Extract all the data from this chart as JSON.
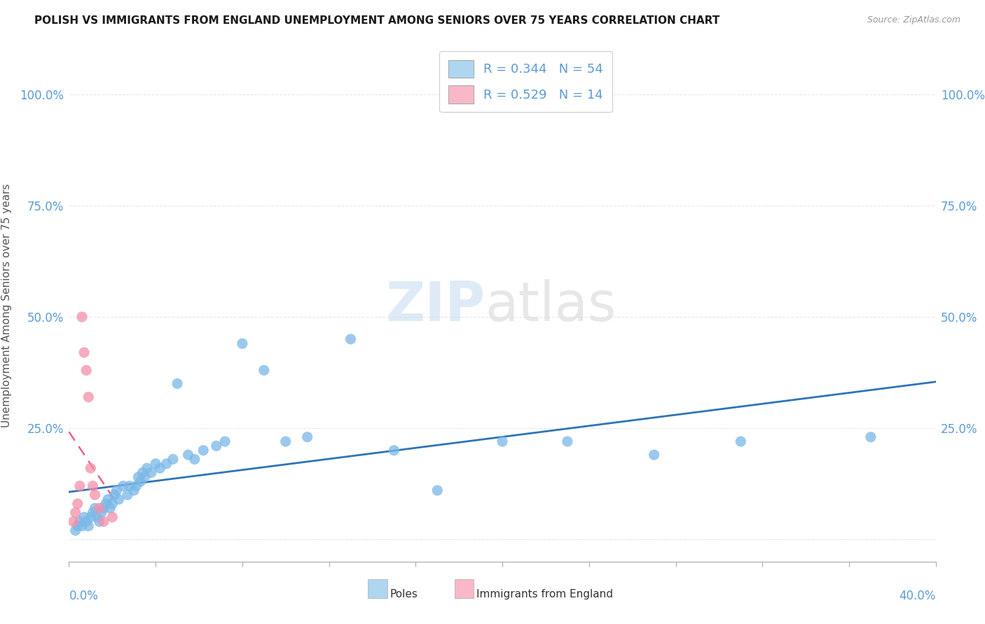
{
  "title": "POLISH VS IMMIGRANTS FROM ENGLAND UNEMPLOYMENT AMONG SENIORS OVER 75 YEARS CORRELATION CHART",
  "source": "Source: ZipAtlas.com",
  "ylabel": "Unemployment Among Seniors over 75 years",
  "ytick_values": [
    0.0,
    0.25,
    0.5,
    0.75,
    1.0
  ],
  "ytick_labels": [
    "",
    "25.0%",
    "50.0%",
    "75.0%",
    "100.0%"
  ],
  "xlim": [
    0.0,
    0.4
  ],
  "ylim": [
    -0.05,
    1.1
  ],
  "legend_label1": "R = 0.344   N = 54",
  "legend_label2": "R = 0.529   N = 14",
  "legend_color1": "#aed6f1",
  "legend_color2": "#f9b8c8",
  "watermark_zip": "ZIP",
  "watermark_atlas": "atlas",
  "blue_scatter_x": [
    0.003,
    0.004,
    0.005,
    0.006,
    0.007,
    0.008,
    0.009,
    0.01,
    0.011,
    0.012,
    0.013,
    0.014,
    0.015,
    0.016,
    0.017,
    0.018,
    0.019,
    0.02,
    0.021,
    0.022,
    0.023,
    0.025,
    0.027,
    0.028,
    0.03,
    0.031,
    0.032,
    0.033,
    0.034,
    0.035,
    0.036,
    0.038,
    0.04,
    0.042,
    0.045,
    0.048,
    0.05,
    0.055,
    0.058,
    0.062,
    0.068,
    0.072,
    0.08,
    0.09,
    0.1,
    0.11,
    0.13,
    0.15,
    0.17,
    0.2,
    0.23,
    0.27,
    0.31,
    0.37
  ],
  "blue_scatter_y": [
    0.02,
    0.03,
    0.04,
    0.03,
    0.05,
    0.04,
    0.03,
    0.05,
    0.06,
    0.07,
    0.05,
    0.04,
    0.06,
    0.07,
    0.08,
    0.09,
    0.07,
    0.08,
    0.1,
    0.11,
    0.09,
    0.12,
    0.1,
    0.12,
    0.11,
    0.12,
    0.14,
    0.13,
    0.15,
    0.14,
    0.16,
    0.15,
    0.17,
    0.16,
    0.17,
    0.18,
    0.35,
    0.19,
    0.18,
    0.2,
    0.21,
    0.22,
    0.44,
    0.38,
    0.22,
    0.23,
    0.45,
    0.2,
    0.11,
    0.22,
    0.22,
    0.19,
    0.22,
    0.23
  ],
  "pink_scatter_x": [
    0.002,
    0.003,
    0.004,
    0.005,
    0.006,
    0.007,
    0.008,
    0.009,
    0.01,
    0.011,
    0.012,
    0.014,
    0.016,
    0.02
  ],
  "pink_scatter_y": [
    0.04,
    0.06,
    0.08,
    0.12,
    0.5,
    0.42,
    0.38,
    0.32,
    0.16,
    0.12,
    0.1,
    0.07,
    0.04,
    0.05
  ],
  "dot_color_blue": "#7ab8e8",
  "dot_color_pink": "#f48fa8",
  "trendline_blue_color": "#2e75b6",
  "trendline_pink_color": "#f06080",
  "trendline_blue_dash": "solid",
  "trendline_pink_dash": "dashed",
  "background_color": "#ffffff",
  "grid_color": "#e8e8e8",
  "tick_color": "#5b9bd5",
  "axis_label_color": "#555555"
}
